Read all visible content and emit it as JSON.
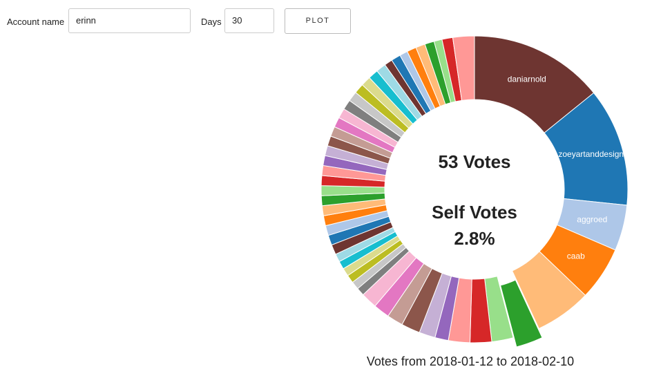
{
  "form": {
    "account_label": "Account name",
    "account_value": "erinn",
    "days_label": "Days",
    "days_value": "30",
    "button": "PLOT"
  },
  "chart_data": {
    "type": "donut",
    "center_title": "53 Votes",
    "center_subtitle": "Self Votes",
    "center_value": "2.8%",
    "caption": "Votes from 2018-01-12 to 2018-02-10",
    "explode_index": 5,
    "categories": [
      "daniarnold",
      "zoeyartanddesign",
      "aggroed",
      "caab",
      null,
      null,
      null,
      null,
      null,
      null,
      null,
      null,
      null,
      null,
      null,
      null,
      null,
      null,
      null,
      null,
      null,
      null,
      null,
      null,
      null,
      null,
      null,
      null,
      null,
      null,
      null,
      null,
      null,
      null,
      null,
      null,
      null,
      null,
      null,
      null,
      null,
      null,
      null,
      null,
      null,
      null,
      null,
      null,
      null,
      null,
      null
    ],
    "values": [
      50,
      44,
      17,
      20,
      21,
      10,
      8,
      8,
      8,
      5,
      6,
      7,
      6,
      6,
      6,
      3,
      3,
      3,
      3,
      3,
      3,
      3.7,
      3.7,
      3.7,
      3.7,
      3.7,
      3.7,
      3.7,
      3.7,
      3.7,
      3.7,
      3.7,
      3.7,
      3.7,
      3.7,
      3.7,
      3.7,
      3.7,
      3.7,
      3.7,
      3.7,
      3.7,
      3,
      3.5,
      3,
      3.5,
      3.5,
      3.5,
      3,
      4,
      8
    ],
    "colors": [
      "#6e3531",
      "#1f77b4",
      "#aec7e8",
      "#ff7f0e",
      "#ffbb78",
      "#2ca02c",
      "#98df8a",
      "#d62728",
      "#ff9896",
      "#9467bd",
      "#c5b0d5",
      "#8c564b",
      "#c49c94",
      "#e377c2",
      "#f7b6d2",
      "#7f7f7f",
      "#c7c7c7",
      "#bcbd22",
      "#dbdb8d",
      "#17becf",
      "#9edae5",
      "#6e3531",
      "#1f77b4",
      "#aec7e8",
      "#ff7f0e",
      "#ffbb78",
      "#2ca02c",
      "#98df8a",
      "#d62728",
      "#ff9896",
      "#9467bd",
      "#c5b0d5",
      "#8c564b",
      "#c49c94",
      "#e377c2",
      "#f7b6d2",
      "#7f7f7f",
      "#c7c7c7",
      "#bcbd22",
      "#dbdb8d",
      "#17becf",
      "#9edae5",
      "#6e3531",
      "#1f77b4",
      "#aec7e8",
      "#ff7f0e",
      "#ffbb78",
      "#2ca02c",
      "#98df8a",
      "#d62728",
      "#ff9896"
    ]
  }
}
